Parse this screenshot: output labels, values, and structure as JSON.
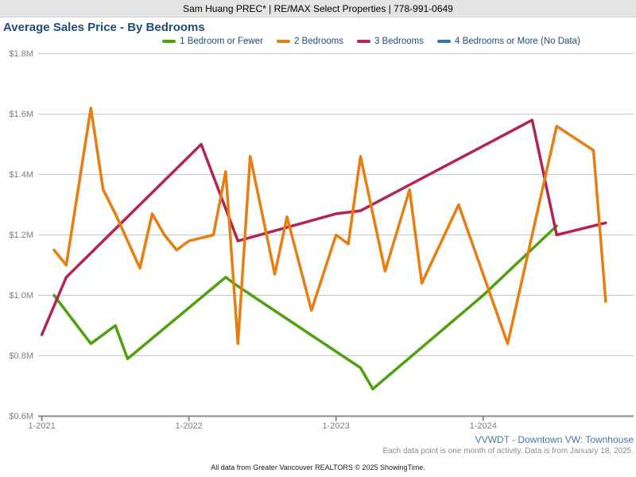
{
  "header": {
    "text": "Sam Huang PREC* | RE/MAX Select Properties | 778-991-0649"
  },
  "title": "Average Sales Price - By Bedrooms",
  "legend": [
    {
      "label": "1 Bedroom or Fewer",
      "color": "#4ea10c"
    },
    {
      "label": "2 Bedrooms",
      "color": "#e87d10"
    },
    {
      "label": "3 Bedrooms",
      "color": "#b2254f"
    },
    {
      "label": "4 Bedrooms or More (No Data)",
      "color": "#2e75b6"
    }
  ],
  "colors": {
    "gridline": "#c8c8c8",
    "axis": "#8a8a8a",
    "title_navy": "#1f4e79",
    "link_blue": "#4576a8",
    "note_gray": "#8c8c8c",
    "header_bg": "#e4e4e4"
  },
  "chart_data": {
    "type": "line",
    "title": "Average Sales Price - By Bedrooms",
    "xlabel": "",
    "ylabel": "",
    "units": "millions of dollars",
    "grid": "horizontal",
    "legend_position": "top",
    "y_axis": {
      "min": 0.6,
      "max": 1.8,
      "step": 0.2,
      "ticks": [
        {
          "value": 1.8,
          "label": "$1.8M"
        },
        {
          "value": 1.6,
          "label": "$1.6M"
        },
        {
          "value": 1.4,
          "label": "$1.4M"
        },
        {
          "value": 1.2,
          "label": "$1.2M"
        },
        {
          "value": 1.0,
          "label": "$1.0M"
        },
        {
          "value": 0.8,
          "label": "$0.8M"
        },
        {
          "value": 0.6,
          "label": "$0.6M"
        }
      ]
    },
    "x_axis": {
      "ticks": [
        {
          "month": "2021-01",
          "label": "1-2021"
        },
        {
          "month": "2022-01",
          "label": "1-2022"
        },
        {
          "month": "2023-01",
          "label": "1-2023"
        },
        {
          "month": "2024-01",
          "label": "1-2024"
        }
      ]
    },
    "draw_order": [
      0,
      3,
      2,
      1
    ],
    "series": [
      {
        "id": "1-bedroom-or-fewer",
        "name": "1 Bedroom or Fewer",
        "color": "#4ea10c",
        "points": [
          [
            "2021-02",
            1.0
          ],
          [
            "2021-05",
            0.84
          ],
          [
            "2021-07",
            0.9
          ],
          [
            "2021-08",
            0.79
          ],
          [
            "2022-04",
            1.06
          ],
          [
            "2022-05",
            1.03
          ],
          [
            "2023-03",
            0.76
          ],
          [
            "2023-04",
            0.69
          ],
          [
            "2024-01",
            1.0
          ],
          [
            "2024-07",
            1.23
          ]
        ]
      },
      {
        "id": "2-bedrooms",
        "name": "2 Bedrooms",
        "color": "#e87d10",
        "points": [
          [
            "2021-02",
            1.15
          ],
          [
            "2021-03",
            1.1
          ],
          [
            "2021-05",
            1.62
          ],
          [
            "2021-06",
            1.35
          ],
          [
            "2021-07",
            1.27
          ],
          [
            "2021-09",
            1.09
          ],
          [
            "2021-10",
            1.27
          ],
          [
            "2021-11",
            1.2
          ],
          [
            "2021-12",
            1.15
          ],
          [
            "2022-01",
            1.18
          ],
          [
            "2022-03",
            1.2
          ],
          [
            "2022-04",
            1.41
          ],
          [
            "2022-05",
            0.84
          ],
          [
            "2022-06",
            1.46
          ],
          [
            "2022-08",
            1.07
          ],
          [
            "2022-09",
            1.26
          ],
          [
            "2022-11",
            0.95
          ],
          [
            "2023-01",
            1.2
          ],
          [
            "2023-02",
            1.17
          ],
          [
            "2023-03",
            1.46
          ],
          [
            "2023-05",
            1.08
          ],
          [
            "2023-07",
            1.35
          ],
          [
            "2023-08",
            1.04
          ],
          [
            "2023-11",
            1.3
          ],
          [
            "2024-03",
            0.84
          ],
          [
            "2024-07",
            1.56
          ],
          [
            "2024-10",
            1.48
          ],
          [
            "2024-11",
            0.98
          ]
        ]
      },
      {
        "id": "3-bedrooms",
        "name": "3 Bedrooms",
        "color": "#b2254f",
        "points": [
          [
            "2021-01",
            0.87
          ],
          [
            "2021-03",
            1.06
          ],
          [
            "2022-02",
            1.5
          ],
          [
            "2022-05",
            1.18
          ],
          [
            "2023-01",
            1.27
          ],
          [
            "2023-03",
            1.28
          ],
          [
            "2024-05",
            1.58
          ],
          [
            "2024-07",
            1.2
          ],
          [
            "2024-11",
            1.24
          ]
        ]
      },
      {
        "id": "4-bedrooms-or-more",
        "name": "4 Bedrooms or More (No Data)",
        "color": "#2e75b6",
        "points": []
      }
    ]
  },
  "footer": {
    "link": "VVWDT - Downtown VW: Townhouse",
    "note": "Each data point is one month of activity. Data is from January 18, 2025.",
    "attribution": "All data from Greater Vancouver REALTORS © 2025 ShowingTime."
  }
}
